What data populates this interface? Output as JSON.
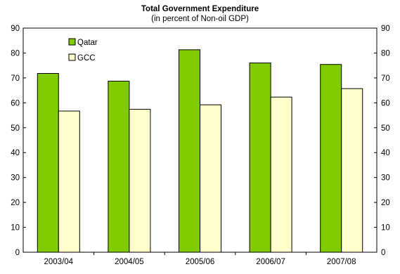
{
  "chart_data": {
    "type": "bar",
    "title": "Total Government Expenditure",
    "subtitle": "(in percent of Non-oil GDP)",
    "categories": [
      "2003/04",
      "2004/05",
      "2005/06",
      "2006/07",
      "2007/08"
    ],
    "series": [
      {
        "name": "Qatar",
        "color": "#80CC00",
        "values": [
          71.8,
          68.7,
          81.3,
          76.0,
          75.4
        ]
      },
      {
        "name": "GCC",
        "color": "#FFFFCC",
        "values": [
          56.7,
          57.4,
          59.2,
          62.3,
          65.7
        ]
      }
    ],
    "ylim": [
      0,
      90
    ],
    "yticks": [
      "0",
      "10",
      "20",
      "30",
      "40",
      "50",
      "60",
      "70",
      "80",
      "90"
    ],
    "secondary_yticks": [
      "0",
      "10",
      "20",
      "30",
      "40",
      "50",
      "60",
      "70",
      "80",
      "90"
    ],
    "xlabel": "",
    "ylabel": "",
    "legend_position": "top-left",
    "grid": false
  }
}
